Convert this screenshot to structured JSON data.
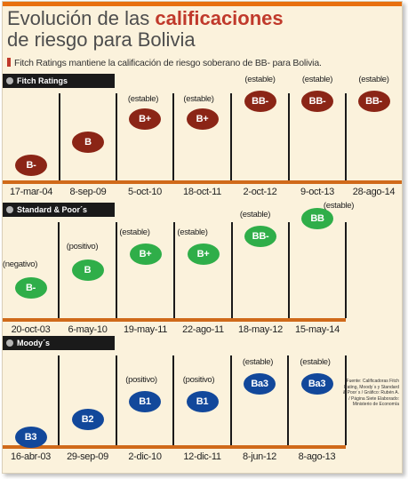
{
  "title_line1": "Evolución de las",
  "title_line1_bold": "calificaciones",
  "title_line2": "de riesgo para Bolivia",
  "subtitle": "Fitch Ratings mantiene la calificación de riesgo soberano de BB- para Bolivia.",
  "source_note": "Fuente: Calificadoras Fitch Rating, Moody´s y Standard & Poor´s / Gráfico: Rubén A. / Página Siete Elaborado: Ministerio de Economía",
  "colors": {
    "accent_bar": "#e8700f",
    "fitch": "#8b2516",
    "sp": "#2fae49",
    "moodys": "#12489b",
    "band_label_bg": "#1a1a1a",
    "background": "#fbf2dc"
  },
  "chart_data": {
    "type": "table",
    "agencies": [
      {
        "name": "Fitch Ratings",
        "color": "#8b2516",
        "entries": [
          {
            "date": "17-mar-04",
            "rating": "B-",
            "outlook": ""
          },
          {
            "date": "8-sep-09",
            "rating": "B",
            "outlook": ""
          },
          {
            "date": "5-oct-10",
            "rating": "B+",
            "outlook": "(estable)"
          },
          {
            "date": "18-oct-11",
            "rating": "B+",
            "outlook": "(estable)"
          },
          {
            "date": "2-oct-12",
            "rating": "BB-",
            "outlook": "(estable)"
          },
          {
            "date": "9-oct-13",
            "rating": "BB-",
            "outlook": "(estable)"
          },
          {
            "date": "28-ago-14",
            "rating": "BB-",
            "outlook": "(estable)"
          }
        ]
      },
      {
        "name": "Standard & Poor´s",
        "color": "#2fae49",
        "entries": [
          {
            "date": "20-oct-03",
            "rating": "B-",
            "outlook": "(negativo)"
          },
          {
            "date": "6-may-10",
            "rating": "B",
            "outlook": "(positivo)"
          },
          {
            "date": "19-may-11",
            "rating": "B+",
            "outlook": "(estable)"
          },
          {
            "date": "22-ago-11",
            "rating": "B+",
            "outlook": "(estable)"
          },
          {
            "date": "18-may-12",
            "rating": "BB-",
            "outlook": "(estable)"
          },
          {
            "date": "15-may-14",
            "rating": "BB",
            "outlook": "(estable)"
          }
        ]
      },
      {
        "name": "Moody´s",
        "color": "#12489b",
        "entries": [
          {
            "date": "16-abr-03",
            "rating": "B3",
            "outlook": ""
          },
          {
            "date": "29-sep-09",
            "rating": "B2",
            "outlook": ""
          },
          {
            "date": "2-dic-10",
            "rating": "B1",
            "outlook": "(positivo)"
          },
          {
            "date": "12-dic-11",
            "rating": "B1",
            "outlook": "(positivo)"
          },
          {
            "date": "8-jun-12",
            "rating": "Ba3",
            "outlook": "(estable)"
          },
          {
            "date": "8-ago-13",
            "rating": "Ba3",
            "outlook": "(estable)"
          }
        ]
      }
    ]
  }
}
